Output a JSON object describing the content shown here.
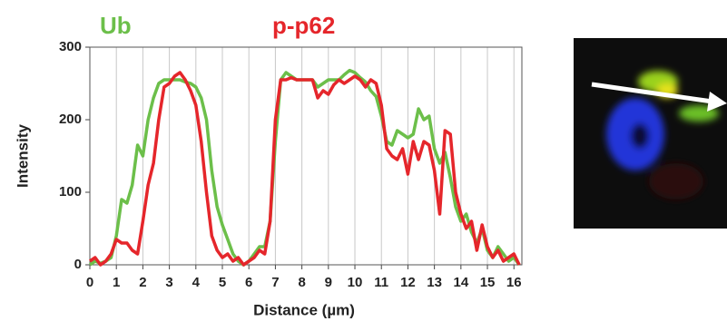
{
  "chart_data": {
    "type": "line",
    "xlabel": "Distance (µm)",
    "ylabel": "Intensity",
    "x": [
      0,
      0.2,
      0.4,
      0.6,
      0.8,
      1,
      1.2,
      1.4,
      1.6,
      1.8,
      2,
      2.2,
      2.4,
      2.6,
      2.8,
      3,
      3.2,
      3.4,
      3.6,
      3.8,
      4,
      4.2,
      4.4,
      4.6,
      4.8,
      5,
      5.2,
      5.4,
      5.6,
      5.8,
      6,
      6.2,
      6.4,
      6.6,
      6.8,
      7,
      7.2,
      7.4,
      7.6,
      7.8,
      8,
      8.2,
      8.4,
      8.6,
      8.8,
      9,
      9.2,
      9.4,
      9.6,
      9.8,
      10,
      10.2,
      10.4,
      10.6,
      10.8,
      11,
      11.2,
      11.4,
      11.6,
      11.8,
      12,
      12.2,
      12.4,
      12.6,
      12.8,
      13,
      13.2,
      13.4,
      13.6,
      13.8,
      14,
      14.2,
      14.4,
      14.6,
      14.8,
      15,
      15.2,
      15.4,
      15.6,
      15.8,
      16,
      16.2
    ],
    "series": [
      {
        "name": "Ub",
        "color": "#6cbf4a",
        "values": [
          0,
          5,
          2,
          5,
          10,
          40,
          90,
          85,
          110,
          165,
          150,
          200,
          230,
          250,
          255,
          255,
          255,
          255,
          252,
          250,
          245,
          230,
          200,
          130,
          80,
          55,
          35,
          15,
          5,
          0,
          5,
          15,
          25,
          25,
          60,
          170,
          255,
          265,
          260,
          255,
          255,
          255,
          255,
          245,
          250,
          255,
          255,
          255,
          262,
          268,
          265,
          258,
          252,
          240,
          232,
          205,
          170,
          165,
          185,
          180,
          175,
          180,
          215,
          200,
          205,
          160,
          140,
          155,
          120,
          80,
          60,
          70,
          45,
          30,
          50,
          20,
          10,
          25,
          15,
          5,
          10,
          0
        ]
      },
      {
        "name": "p-p62",
        "color": "#e5262b",
        "values": [
          5,
          10,
          0,
          5,
          15,
          35,
          30,
          30,
          20,
          15,
          60,
          110,
          140,
          200,
          245,
          250,
          260,
          265,
          255,
          240,
          220,
          170,
          100,
          40,
          20,
          10,
          15,
          5,
          10,
          0,
          5,
          10,
          20,
          15,
          60,
          200,
          255,
          255,
          258,
          255,
          255,
          255,
          255,
          230,
          240,
          235,
          248,
          255,
          250,
          255,
          260,
          255,
          245,
          255,
          250,
          220,
          160,
          150,
          145,
          160,
          125,
          170,
          145,
          170,
          165,
          130,
          70,
          185,
          180,
          100,
          70,
          50,
          60,
          20,
          55,
          25,
          10,
          20,
          5,
          10,
          15,
          0
        ]
      }
    ],
    "xlim": [
      0,
      16.3
    ],
    "ylim": [
      0,
      300
    ],
    "xticks": [
      0,
      1,
      2,
      3,
      4,
      5,
      6,
      7,
      8,
      9,
      10,
      11,
      12,
      13,
      14,
      15,
      16
    ],
    "yticks": [
      0,
      100,
      200,
      300
    ],
    "grid": true
  }
}
